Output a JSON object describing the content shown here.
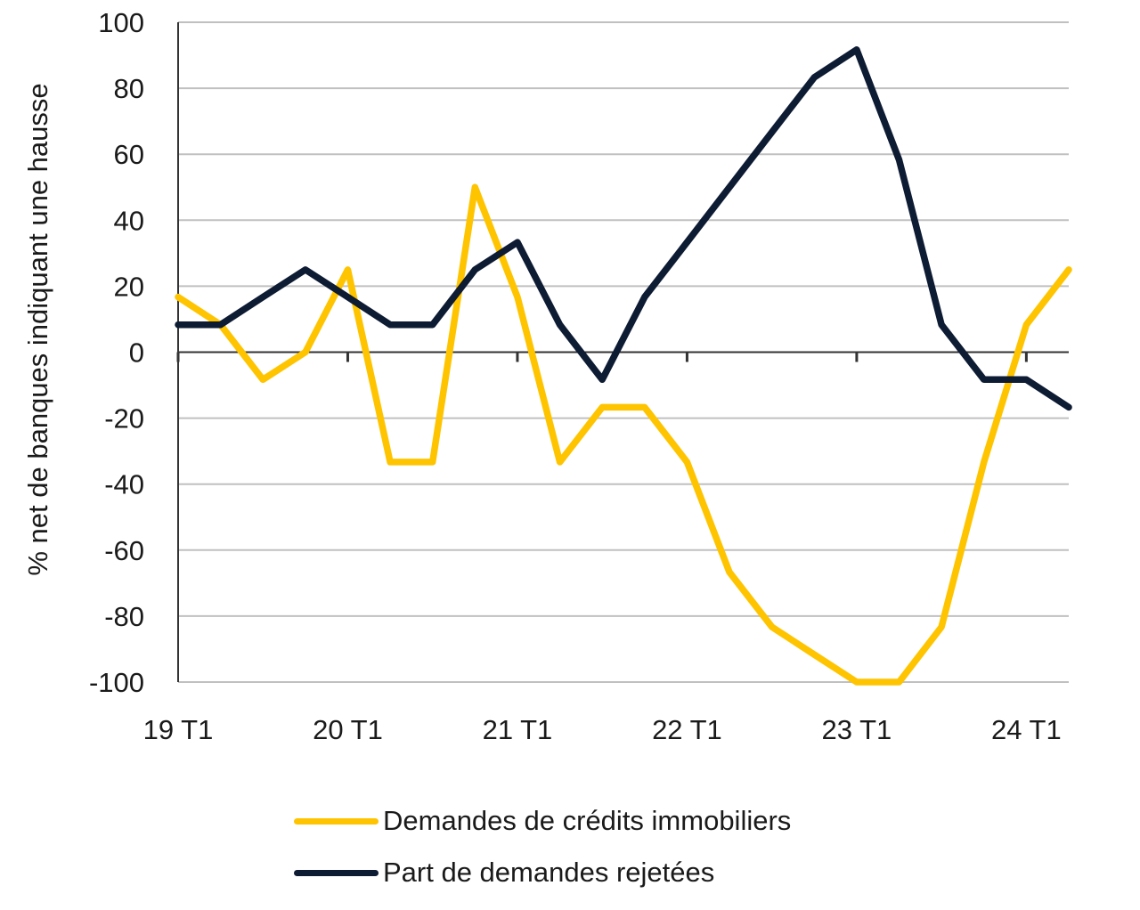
{
  "chart_data": {
    "type": "line",
    "title": "",
    "xlabel": "",
    "ylabel": "% net de banques indiquant une hausse",
    "ylim": [
      -100,
      100
    ],
    "yticks": [
      100,
      80,
      60,
      40,
      20,
      0,
      -20,
      -40,
      -60,
      -80,
      -100
    ],
    "ytick_labels": [
      "100",
      "80",
      "60",
      "40",
      "20",
      "0",
      "-20",
      "-40",
      "-60",
      "-80",
      "-100"
    ],
    "x": [
      "19 T1",
      "19 T2",
      "19 T3",
      "19 T4",
      "20 T1",
      "20 T2",
      "20 T3",
      "20 T4",
      "21 T1",
      "21 T2",
      "21 T3",
      "21 T4",
      "22 T1",
      "22 T2",
      "22 T3",
      "22 T4",
      "23 T1",
      "23 T2",
      "23 T3",
      "23 T4",
      "24 T1",
      "24 T2"
    ],
    "xtick_labels": [
      "19 T1",
      "20 T1",
      "21 T1",
      "22 T1",
      "23 T1",
      "24 T1"
    ],
    "xtick_indices": [
      0,
      4,
      8,
      12,
      16,
      20
    ],
    "grid": true,
    "legend_position": "bottom",
    "series": [
      {
        "name": "Demandes de crédits immobiliers",
        "color": "#FFC400",
        "values": [
          16.7,
          8.3,
          -8.3,
          0,
          25,
          -33.3,
          -33.3,
          50,
          16.7,
          -33.3,
          -16.7,
          -16.7,
          -33.3,
          -66.7,
          -83.3,
          -91.7,
          -100,
          -100,
          -83.3,
          -33.3,
          8.3,
          25
        ]
      },
      {
        "name": "Part de demandes rejetées",
        "color": "#0D1B33",
        "values": [
          8.3,
          8.3,
          16.7,
          25,
          16.7,
          8.3,
          8.3,
          25,
          33.3,
          8.3,
          -8.3,
          16.7,
          33.3,
          50,
          66.7,
          83.3,
          91.7,
          58.3,
          8.3,
          -8.3,
          -8.3,
          -16.7
        ]
      }
    ]
  }
}
